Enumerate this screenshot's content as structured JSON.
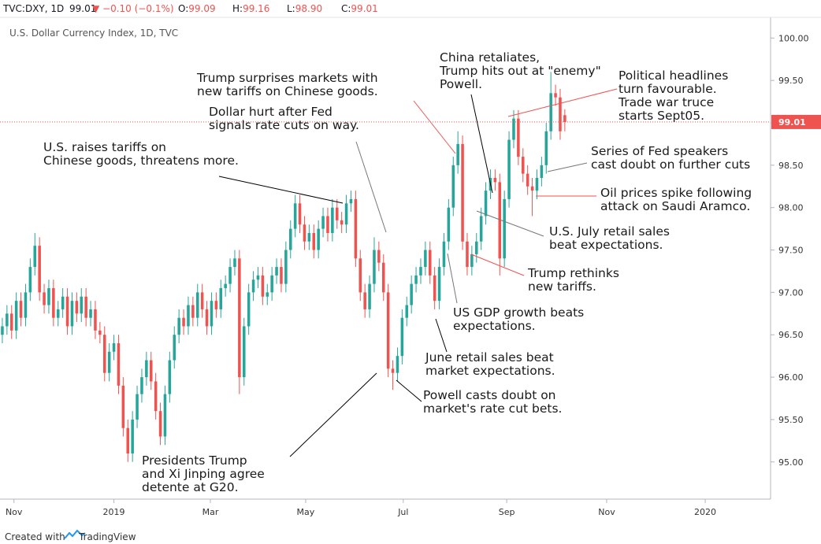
{
  "header": {
    "symbol": "TVC:DXY, 1D",
    "last": "99.01",
    "change": "▼ −0.10 (−0.1%)",
    "ohlc": [
      {
        "label": "O:",
        "value": "99.09"
      },
      {
        "label": "H:",
        "value": "99.16"
      },
      {
        "label": "L:",
        "value": "98.90"
      },
      {
        "label": "C:",
        "value": "99.01"
      }
    ]
  },
  "footer": {
    "created": "Created with",
    "brand": "TradingView"
  },
  "chart_data": {
    "type": "candlestick",
    "title": "U.S. Dollar Currency Index, 1D, TVC",
    "up_color": "#26a69a",
    "down_color": "#ef5350",
    "last_price_color": "#ef5350",
    "x": [
      0,
      2,
      4,
      6,
      8,
      10,
      12,
      14,
      16,
      18,
      20,
      22,
      24,
      26,
      28,
      30,
      32,
      34,
      36,
      38,
      40,
      42,
      44,
      46,
      48,
      50,
      52,
      54,
      56,
      58,
      60,
      62,
      64,
      66,
      68,
      70,
      72,
      74,
      76,
      78,
      80,
      82,
      84,
      86,
      88,
      90,
      92,
      94,
      96,
      98,
      100,
      102,
      104,
      106,
      108,
      110,
      112,
      114,
      116,
      118,
      120,
      122,
      124,
      126,
      128,
      130,
      132,
      134,
      136,
      138,
      140,
      142,
      144,
      146,
      148,
      150,
      152,
      154,
      156,
      158,
      160,
      162,
      164,
      166,
      168,
      170,
      172,
      174,
      176,
      178,
      180,
      182,
      184,
      186,
      188,
      190,
      192,
      194,
      196,
      198,
      200,
      202,
      204,
      206,
      208,
      210,
      212,
      214,
      216,
      218,
      220,
      222,
      224,
      226,
      228,
      230,
      232,
      234,
      236,
      238,
      240,
      242
    ],
    "ohlc": [
      [
        96.5,
        96.7,
        96.4,
        96.6
      ],
      [
        96.6,
        96.85,
        96.5,
        96.75
      ],
      [
        96.75,
        96.85,
        96.45,
        96.55
      ],
      [
        96.55,
        97.0,
        96.45,
        96.9
      ],
      [
        96.9,
        97.0,
        96.6,
        96.7
      ],
      [
        96.7,
        97.1,
        96.6,
        97.0
      ],
      [
        97.0,
        97.4,
        96.9,
        97.3
      ],
      [
        97.3,
        97.7,
        97.2,
        97.55
      ],
      [
        97.55,
        97.65,
        96.9,
        97.0
      ],
      [
        97.0,
        97.1,
        96.75,
        96.85
      ],
      [
        96.85,
        97.15,
        96.75,
        97.05
      ],
      [
        97.05,
        97.15,
        96.6,
        96.7
      ],
      [
        96.7,
        96.9,
        96.6,
        96.8
      ],
      [
        96.8,
        97.05,
        96.7,
        96.95
      ],
      [
        96.95,
        97.05,
        96.5,
        96.6
      ],
      [
        96.6,
        97.0,
        96.5,
        96.9
      ],
      [
        96.9,
        97.0,
        96.65,
        96.75
      ],
      [
        96.75,
        97.05,
        96.65,
        96.95
      ],
      [
        96.95,
        97.05,
        96.6,
        96.7
      ],
      [
        96.7,
        96.9,
        96.6,
        96.8
      ],
      [
        96.8,
        96.9,
        96.45,
        96.55
      ],
      [
        96.55,
        96.65,
        96.4,
        96.5
      ],
      [
        96.5,
        96.6,
        95.95,
        96.05
      ],
      [
        96.05,
        96.4,
        95.95,
        96.3
      ],
      [
        96.3,
        96.5,
        96.2,
        96.4
      ],
      [
        96.4,
        96.5,
        95.8,
        95.9
      ],
      [
        95.9,
        96.0,
        95.3,
        95.4
      ],
      [
        95.4,
        95.5,
        95.0,
        95.1
      ],
      [
        95.1,
        95.6,
        95.0,
        95.5
      ],
      [
        95.5,
        95.9,
        95.4,
        95.8
      ],
      [
        95.8,
        96.1,
        95.7,
        96.0
      ],
      [
        96.0,
        96.3,
        95.9,
        96.2
      ],
      [
        96.2,
        96.3,
        95.85,
        95.95
      ],
      [
        95.95,
        96.05,
        95.5,
        95.6
      ],
      [
        95.6,
        95.7,
        95.2,
        95.3
      ],
      [
        95.3,
        95.9,
        95.2,
        95.8
      ],
      [
        95.8,
        96.3,
        95.7,
        96.2
      ],
      [
        96.2,
        96.6,
        96.1,
        96.5
      ],
      [
        96.5,
        96.8,
        96.4,
        96.7
      ],
      [
        96.7,
        96.8,
        96.5,
        96.6
      ],
      [
        96.6,
        96.95,
        96.5,
        96.85
      ],
      [
        96.85,
        96.95,
        96.6,
        96.7
      ],
      [
        96.7,
        97.1,
        96.6,
        97.0
      ],
      [
        97.0,
        97.1,
        96.7,
        96.8
      ],
      [
        96.8,
        96.9,
        96.5,
        96.6
      ],
      [
        96.6,
        97.0,
        96.5,
        96.9
      ],
      [
        96.9,
        97.0,
        96.7,
        96.8
      ],
      [
        96.8,
        97.15,
        96.7,
        97.05
      ],
      [
        97.05,
        97.2,
        96.95,
        97.1
      ],
      [
        97.1,
        97.4,
        97.0,
        97.3
      ],
      [
        97.3,
        97.5,
        97.2,
        97.4
      ],
      [
        97.4,
        97.5,
        95.8,
        96.0
      ],
      [
        96.0,
        96.7,
        95.9,
        96.6
      ],
      [
        96.6,
        97.1,
        96.5,
        97.0
      ],
      [
        97.0,
        97.25,
        96.9,
        97.15
      ],
      [
        97.15,
        97.3,
        97.05,
        97.2
      ],
      [
        97.2,
        97.3,
        96.85,
        96.95
      ],
      [
        96.95,
        97.1,
        96.85,
        97.0
      ],
      [
        97.0,
        97.3,
        96.9,
        97.2
      ],
      [
        97.2,
        97.4,
        97.1,
        97.3
      ],
      [
        97.3,
        97.4,
        97.0,
        97.1
      ],
      [
        97.1,
        97.6,
        97.0,
        97.5
      ],
      [
        97.5,
        97.85,
        97.4,
        97.75
      ],
      [
        97.75,
        98.15,
        97.65,
        98.05
      ],
      [
        98.05,
        98.15,
        97.7,
        97.8
      ],
      [
        97.8,
        97.9,
        97.5,
        97.6
      ],
      [
        97.6,
        97.8,
        97.5,
        97.7
      ],
      [
        97.7,
        97.8,
        97.4,
        97.5
      ],
      [
        97.5,
        97.85,
        97.4,
        97.75
      ],
      [
        97.75,
        98.0,
        97.65,
        97.9
      ],
      [
        97.9,
        98.0,
        97.6,
        97.7
      ],
      [
        97.7,
        98.1,
        97.6,
        98.0
      ],
      [
        98.0,
        98.1,
        97.75,
        97.85
      ],
      [
        97.85,
        97.95,
        97.7,
        97.8
      ],
      [
        97.8,
        98.15,
        97.7,
        98.05
      ],
      [
        98.05,
        98.2,
        97.95,
        98.1
      ],
      [
        98.1,
        98.2,
        97.3,
        97.4
      ],
      [
        97.4,
        97.5,
        96.9,
        97.0
      ],
      [
        97.0,
        97.1,
        96.7,
        96.8
      ],
      [
        96.8,
        97.2,
        96.7,
        97.1
      ],
      [
        97.1,
        97.65,
        97.0,
        97.5
      ],
      [
        97.5,
        97.6,
        97.25,
        97.35
      ],
      [
        97.35,
        97.45,
        96.9,
        97.0
      ],
      [
        97.0,
        97.1,
        96.0,
        96.1
      ],
      [
        96.1,
        96.2,
        95.85,
        96.05
      ],
      [
        96.05,
        96.35,
        95.95,
        96.25
      ],
      [
        96.25,
        96.8,
        96.15,
        96.7
      ],
      [
        96.7,
        96.95,
        96.6,
        96.85
      ],
      [
        96.85,
        97.2,
        96.75,
        97.1
      ],
      [
        97.1,
        97.3,
        97.0,
        97.2
      ],
      [
        97.2,
        97.4,
        97.1,
        97.3
      ],
      [
        97.3,
        97.6,
        97.2,
        97.5
      ],
      [
        97.5,
        97.6,
        97.1,
        97.2
      ],
      [
        97.2,
        97.3,
        96.8,
        96.9
      ],
      [
        96.9,
        97.4,
        96.8,
        97.3
      ],
      [
        97.3,
        97.7,
        97.2,
        97.6
      ],
      [
        97.6,
        98.1,
        97.5,
        98.0
      ],
      [
        98.0,
        98.6,
        97.9,
        98.5
      ],
      [
        98.5,
        98.9,
        98.4,
        98.75
      ],
      [
        98.75,
        98.85,
        97.5,
        97.6
      ],
      [
        97.6,
        97.7,
        97.2,
        97.3
      ],
      [
        97.3,
        97.55,
        97.2,
        97.45
      ],
      [
        97.45,
        97.7,
        97.35,
        97.6
      ],
      [
        97.6,
        98.0,
        97.5,
        97.9
      ],
      [
        97.9,
        98.3,
        97.8,
        98.2
      ],
      [
        98.2,
        98.45,
        98.1,
        98.35
      ],
      [
        98.35,
        98.45,
        98.2,
        98.3
      ],
      [
        98.3,
        98.4,
        97.2,
        97.4
      ],
      [
        97.4,
        98.2,
        97.3,
        98.1
      ],
      [
        98.1,
        98.9,
        98.0,
        98.8
      ],
      [
        98.8,
        99.15,
        98.7,
        99.05
      ],
      [
        99.05,
        99.15,
        98.5,
        98.6
      ],
      [
        98.6,
        98.7,
        98.3,
        98.4
      ],
      [
        98.4,
        98.5,
        98.15,
        98.25
      ],
      [
        98.25,
        98.35,
        97.9,
        98.2
      ],
      [
        98.2,
        98.45,
        98.1,
        98.35
      ],
      [
        98.35,
        98.6,
        98.25,
        98.5
      ],
      [
        98.5,
        99.0,
        98.4,
        98.9
      ],
      [
        98.9,
        99.6,
        98.8,
        99.35
      ],
      [
        99.35,
        99.45,
        99.2,
        99.3
      ],
      [
        99.3,
        99.4,
        98.8,
        98.9
      ],
      [
        99.09,
        99.16,
        98.9,
        99.01
      ]
    ],
    "xlim": [
      -1,
      329.5
    ],
    "xticks": [
      {
        "value": 5,
        "label": "Nov"
      },
      {
        "value": 48,
        "label": "2019"
      },
      {
        "value": 89.5,
        "label": "Mar"
      },
      {
        "value": 130.5,
        "label": "May"
      },
      {
        "value": 172.5,
        "label": "Jul"
      },
      {
        "value": 217,
        "label": "Sep"
      },
      {
        "value": 260,
        "label": "Nov"
      },
      {
        "value": 302.4,
        "label": "2020"
      }
    ],
    "ylim": [
      94.58,
      100.17
    ],
    "yticks": [
      {
        "value": 95,
        "label": "95.00"
      },
      {
        "value": 95.5,
        "label": "95.50"
      },
      {
        "value": 96,
        "label": "96.00"
      },
      {
        "value": 96.5,
        "label": "96.50"
      },
      {
        "value": 97,
        "label": "97.00"
      },
      {
        "value": 97.5,
        "label": "97.50"
      },
      {
        "value": 98,
        "label": "98.00"
      },
      {
        "value": 98.5,
        "label": "98.50"
      },
      {
        "value": 99,
        "label": "99.00"
      },
      {
        "value": 99.5,
        "label": "99.50"
      },
      {
        "value": 100,
        "label": "100.00"
      }
    ],
    "annotations": [
      {
        "lines": [
          "Presidents Trump",
          "and Xi Jinping agree",
          "detente at G20."
        ]
      },
      {
        "lines": [
          "U.S. raises tariffs on",
          "Chinese goods, threatens more."
        ]
      },
      {
        "lines": [
          "Dollar hurt after Fed",
          "signals rate cuts on way."
        ]
      },
      {
        "lines": [
          "Trump surprises markets with",
          "new tariffs on Chinese goods."
        ]
      },
      {
        "lines": [
          "China retaliates,",
          "Trump hits out at \"enemy\"",
          "Powell."
        ]
      },
      {
        "lines": [
          "Political headlines",
          "turn favourable.",
          "Trade war truce",
          "starts Sept05."
        ]
      },
      {
        "lines": [
          "Series of Fed speakers",
          "cast doubt on further cuts"
        ]
      },
      {
        "lines": [
          "Oil prices spike following",
          "attack on Saudi Aramco."
        ]
      },
      {
        "lines": [
          "U.S. July retail sales",
          "beat expectations."
        ]
      },
      {
        "lines": [
          "Trump rethinks",
          "new tariffs."
        ]
      },
      {
        "lines": [
          "US GDP growth beats",
          "expectations."
        ]
      },
      {
        "lines": [
          "June retail sales beat",
          "market expectations."
        ]
      },
      {
        "lines": [
          "Powell casts doubt on",
          "market's rate cut bets."
        ]
      }
    ]
  }
}
